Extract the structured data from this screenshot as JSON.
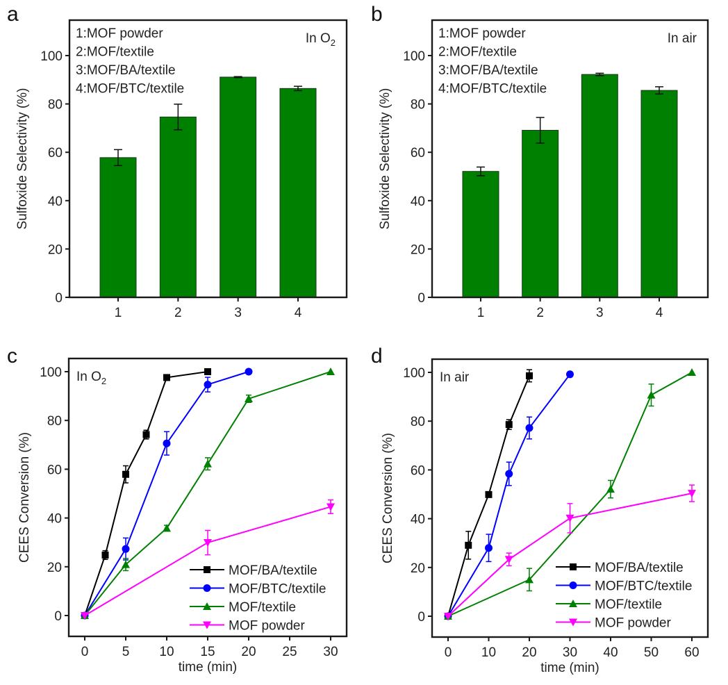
{
  "chart_data": [
    {
      "panel": "a",
      "type": "bar",
      "title": "",
      "annotation": "In O",
      "annotation_sub": "2",
      "ylabel": "Sulfoxide Selectivity (%)",
      "xlabel": "",
      "ylim": [
        0,
        115
      ],
      "yticks": [
        0,
        20,
        40,
        60,
        80,
        100
      ],
      "categories": [
        "1",
        "2",
        "3",
        "4"
      ],
      "values": [
        57.8,
        74.6,
        91.1,
        86.4
      ],
      "errors": [
        3.3,
        5.3,
        0.2,
        0.9
      ],
      "bar_color": "#008000",
      "category_legend": [
        "1:MOF powder",
        "2:MOF/textile",
        "3:MOF/BA/textile",
        "4:MOF/BTC/textile"
      ],
      "grid": false
    },
    {
      "panel": "b",
      "type": "bar",
      "title": "",
      "annotation": "In air",
      "annotation_sub": "",
      "ylabel": "Sulfoxide Selectivity (%)",
      "xlabel": "",
      "ylim": [
        0,
        115
      ],
      "yticks": [
        0,
        20,
        40,
        60,
        80,
        100
      ],
      "categories": [
        "1",
        "2",
        "3",
        "4"
      ],
      "values": [
        52.1,
        69.1,
        92.2,
        85.6
      ],
      "errors": [
        1.8,
        5.3,
        0.5,
        1.5
      ],
      "bar_color": "#008000",
      "category_legend": [
        "1:MOF powder",
        "2:MOF/textile",
        "3:MOF/BA/textile",
        "4:MOF/BTC/textile"
      ],
      "grid": false
    },
    {
      "panel": "c",
      "type": "line",
      "title": "",
      "annotation": "In O",
      "annotation_sub": "2",
      "xlabel": "time (min)",
      "ylabel": "CEES Conversion (%)",
      "xlim": [
        -2,
        32
      ],
      "ylim": [
        -5,
        105
      ],
      "xticks": [
        0,
        5,
        10,
        15,
        20,
        25,
        30
      ],
      "yticks": [
        0,
        20,
        40,
        60,
        80,
        100
      ],
      "legend_position": "bottom-right",
      "grid": false,
      "series": [
        {
          "name": "MOF/BA/textile",
          "color": "#000000",
          "marker": "square",
          "x": [
            0,
            2.5,
            5,
            7.5,
            10,
            15
          ],
          "y": [
            0,
            24.8,
            57.9,
            74.2,
            97.6,
            100
          ],
          "err": [
            0,
            1.8,
            3.5,
            1.8,
            1.0,
            0
          ]
        },
        {
          "name": "MOF/BTC/textile",
          "color": "#0000ff",
          "marker": "circle",
          "x": [
            0,
            5,
            10,
            15,
            20
          ],
          "y": [
            0,
            27.3,
            70.6,
            94.7,
            100
          ],
          "err": [
            0,
            4.5,
            4.8,
            3.0,
            0
          ]
        },
        {
          "name": "MOF/textile",
          "color": "#008000",
          "marker": "triangle-up",
          "x": [
            0,
            5,
            10,
            15,
            20,
            30
          ],
          "y": [
            0,
            20.9,
            35.8,
            62.2,
            88.9,
            100
          ],
          "err": [
            0,
            2.5,
            1.2,
            2.5,
            1.5,
            0
          ]
        },
        {
          "name": "MOF powder",
          "color": "#ff00ff",
          "marker": "triangle-down",
          "x": [
            0,
            15,
            30
          ],
          "y": [
            0,
            29.9,
            44.6
          ],
          "err": [
            0,
            5.0,
            2.8
          ]
        }
      ]
    },
    {
      "panel": "d",
      "type": "line",
      "title": "",
      "annotation": "In air",
      "annotation_sub": "",
      "xlabel": "time (min)",
      "ylabel": "CEES Conversion (%)",
      "xlim": [
        -2,
        63
      ],
      "ylim": [
        -5,
        105
      ],
      "xticks": [
        0,
        10,
        20,
        30,
        40,
        50,
        60
      ],
      "yticks": [
        0,
        20,
        40,
        60,
        80,
        100
      ],
      "legend_position": "bottom-right",
      "grid": false,
      "series": [
        {
          "name": "MOF/BA/textile",
          "color": "#000000",
          "marker": "square",
          "x": [
            0,
            5,
            10,
            15,
            20
          ],
          "y": [
            0,
            29.1,
            49.9,
            78.6,
            98.6
          ],
          "err": [
            0,
            5.7,
            1.0,
            2.0,
            2.5
          ]
        },
        {
          "name": "MOF/BTC/textile",
          "color": "#0000ff",
          "marker": "circle",
          "x": [
            0,
            10,
            15,
            20,
            30
          ],
          "y": [
            0,
            28.0,
            58.4,
            77.2,
            99.2
          ],
          "err": [
            0,
            5.6,
            4.8,
            4.5,
            0.8
          ]
        },
        {
          "name": "MOF/textile",
          "color": "#008000",
          "marker": "triangle-up",
          "x": [
            0,
            20,
            40,
            50,
            60
          ],
          "y": [
            0,
            15.0,
            52.1,
            90.7,
            100
          ],
          "err": [
            0,
            4.6,
            3.6,
            4.5,
            0
          ]
        },
        {
          "name": "MOF powder",
          "color": "#ff00ff",
          "marker": "triangle-down",
          "x": [
            0,
            15,
            30,
            60
          ],
          "y": [
            0,
            23.3,
            40.2,
            50.4
          ],
          "err": [
            0,
            2.6,
            6.0,
            3.4
          ]
        }
      ]
    }
  ]
}
